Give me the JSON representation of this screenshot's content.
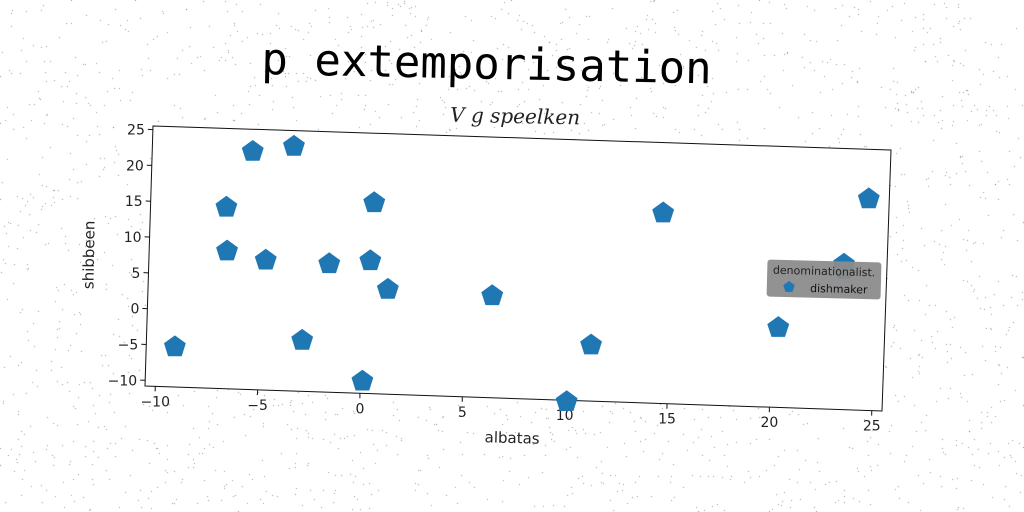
{
  "suptitle": "p extemporisation",
  "chart_data": {
    "type": "scatter",
    "title": "V g speelken",
    "xlabel": "albatas",
    "ylabel": "shibbeen",
    "xlim": [
      -10.5,
      25.5
    ],
    "ylim": [
      -10.8,
      25.5
    ],
    "xticks": [
      -10,
      -5,
      0,
      5,
      10,
      15,
      20,
      25
    ],
    "yticks": [
      -10,
      -5,
      0,
      5,
      10,
      15,
      20,
      25
    ],
    "xtick_labels": [
      "−10",
      "−5",
      "0",
      "5",
      "10",
      "15",
      "20",
      "25"
    ],
    "ytick_labels": [
      "−10",
      "−5",
      "0",
      "5",
      "10",
      "15",
      "20",
      "25"
    ],
    "grid": false,
    "legend": {
      "title": "denominationalist.",
      "placement": "center-right",
      "background": "#8c8c8c"
    },
    "series": [
      {
        "name": "dishmaker",
        "marker": "pentagon",
        "color": "#1f77b4",
        "points": [
          [
            -9.1,
            -5.2
          ],
          [
            -6.7,
            8.4
          ],
          [
            -6.8,
            14.5
          ],
          [
            -5.6,
            22.4
          ],
          [
            -3.6,
            23.3
          ],
          [
            -4.8,
            7.3
          ],
          [
            -2.9,
            -3.7
          ],
          [
            -1.7,
            7.1
          ],
          [
            0.3,
            7.7
          ],
          [
            0.4,
            15.8
          ],
          [
            1.2,
            3.8
          ],
          [
            0.1,
            -9.1
          ],
          [
            6.3,
            3.4
          ],
          [
            10.1,
            -11.0
          ],
          [
            11.2,
            -3.0
          ],
          [
            14.5,
            15.7
          ],
          [
            20.3,
            0.3
          ],
          [
            23.4,
            8.7
          ],
          [
            23.4,
            9.4
          ],
          [
            24.5,
            18.6
          ]
        ]
      }
    ]
  }
}
